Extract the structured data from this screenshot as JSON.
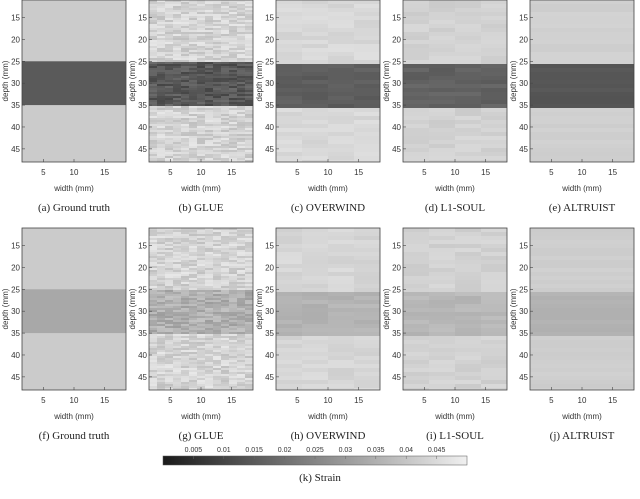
{
  "axes": {
    "xlabel": "width (mm)",
    "ylabel": "depth (mm)",
    "xticks": [
      "5",
      "10",
      "15"
    ],
    "yticks": [
      "15",
      "20",
      "25",
      "30",
      "35",
      "40",
      "45"
    ],
    "xlim": [
      1.5,
      18.5
    ],
    "ylim": [
      11,
      48
    ]
  },
  "rows": [
    {
      "panels": [
        {
          "caption": "(a)  Ground truth",
          "style": "truth",
          "background": "#cbcbcb",
          "inclusion": "#5a5a5a"
        },
        {
          "caption": "(b)  GLUE",
          "style": "noisy",
          "background": "#d4d4d4",
          "inclusion": "#585858"
        },
        {
          "caption": "(c)  OVERWIND",
          "style": "smooth",
          "background": "#d8d8d8",
          "inclusion": "#5e5e5e"
        },
        {
          "caption": "(d)  L1-SOUL",
          "style": "smooth",
          "background": "#d2d2d2",
          "inclusion": "#626262"
        },
        {
          "caption": "(e)  ALTRUIST",
          "style": "flat",
          "background": "#d0d0d0",
          "inclusion": "#565656"
        }
      ]
    },
    {
      "panels": [
        {
          "caption": "(f)  Ground truth",
          "style": "truth",
          "background": "#cbcbcb",
          "inclusion": "#a8a8a8"
        },
        {
          "caption": "(g)  GLUE",
          "style": "noisy",
          "background": "#d4d4d4",
          "inclusion": "#b0b0b0"
        },
        {
          "caption": "(h)  OVERWIND",
          "style": "smooth",
          "background": "#d6d6d6",
          "inclusion": "#b4b4b4"
        },
        {
          "caption": "(i)  L1-SOUL",
          "style": "smooth",
          "background": "#d2d2d2",
          "inclusion": "#b8b8b8"
        },
        {
          "caption": "(j)  ALTRUIST",
          "style": "flat",
          "background": "#cecece",
          "inclusion": "#b2b2b2"
        }
      ]
    }
  ],
  "inclusion_depth_mm": [
    25,
    35
  ],
  "colorbar": {
    "ticks": [
      "0.005",
      "0.01",
      "0.015",
      "0.02",
      "0.025",
      "0.03",
      "0.035",
      "0.04",
      "0.045"
    ],
    "range": [
      0,
      0.05
    ],
    "colors": [
      "#1a1a1a",
      "#f0f0f0"
    ],
    "caption": "(k)  Strain"
  }
}
